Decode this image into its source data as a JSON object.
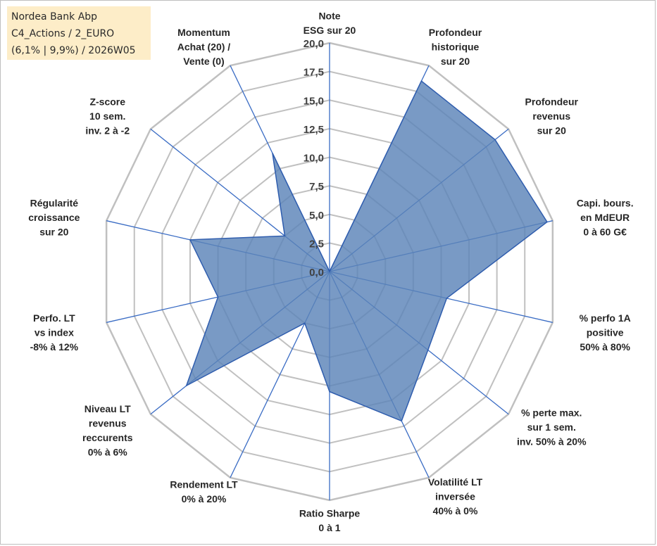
{
  "info_box": {
    "line1": "Nordea Bank Abp",
    "line2": "C4_Actions / 2_EURO",
    "line3": "(6,1% | 9,9%) / 2026W05"
  },
  "colors": {
    "fill": "#5b84b8",
    "stroke": "#2f5dae",
    "grid": "#c0c0c0",
    "spoke": "#3a6cc4",
    "info_bg": "#fdedc8"
  },
  "chart_data": {
    "type": "radar",
    "title": "",
    "rlim": [
      0,
      20
    ],
    "ticks": [
      "0,0",
      "2,5",
      "5,0",
      "7,5",
      "10,0",
      "12,5",
      "15,0",
      "17,5",
      "20,0"
    ],
    "axes": [
      {
        "lines": [
          "Note",
          "ESG sur 20"
        ]
      },
      {
        "lines": [
          "Profondeur",
          "historique",
          "sur 20"
        ]
      },
      {
        "lines": [
          "Profondeur",
          "revenus",
          "sur 20"
        ]
      },
      {
        "lines": [
          "Capi. bours.",
          "en MdEUR",
          "0 à 60 G€"
        ]
      },
      {
        "lines": [
          "% perfo 1A",
          "positive",
          "50% à 80%"
        ]
      },
      {
        "lines": [
          "% perte max.",
          "sur 1 sem.",
          "inv. 50% à 20%"
        ]
      },
      {
        "lines": [
          "Volatilité LT",
          "inversée",
          "40% à 0%"
        ]
      },
      {
        "lines": [
          "Ratio Sharpe",
          "0 à 1"
        ]
      },
      {
        "lines": [
          "Rendement LT",
          "0% à 20%"
        ]
      },
      {
        "lines": [
          "Niveau LT",
          "revenus",
          "reccurents",
          "0% à 6%"
        ]
      },
      {
        "lines": [
          "Perfo. LT",
          "vs index",
          "-8% à 12%"
        ]
      },
      {
        "lines": [
          "Régularité",
          "croissance",
          "sur 20"
        ]
      },
      {
        "lines": [
          "Z-score",
          "10 sem.",
          "inv. 2 à -2"
        ]
      },
      {
        "lines": [
          "Momentum",
          "Achat (20) /",
          "Vente (0)"
        ]
      }
    ],
    "series": [
      {
        "name": "Nordea Bank Abp",
        "values": [
          0.0,
          18.5,
          18.5,
          19.5,
          10.5,
          11.0,
          14.5,
          10.5,
          5.0,
          16.0,
          10.0,
          12.5,
          5.0,
          11.5
        ]
      }
    ]
  }
}
